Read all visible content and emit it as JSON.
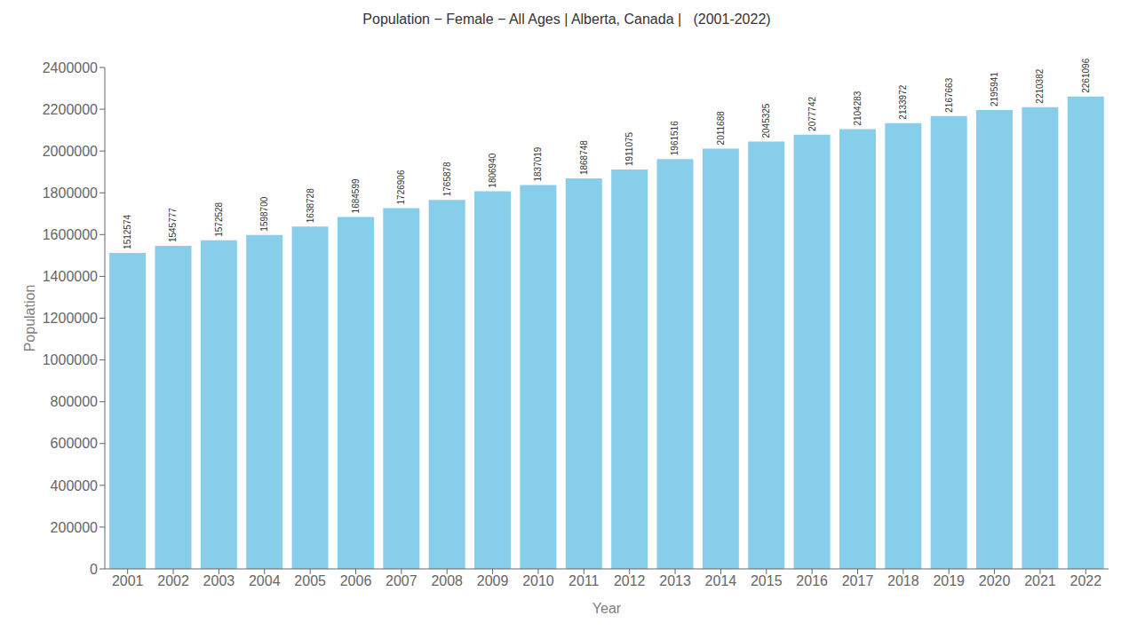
{
  "chart_data": {
    "type": "bar",
    "title": "Population − Female − All Ages | Alberta, Canada |   (2001-2022)",
    "xlabel": "Year",
    "ylabel": "Population",
    "categories": [
      "2001",
      "2002",
      "2003",
      "2004",
      "2005",
      "2006",
      "2007",
      "2008",
      "2009",
      "2010",
      "2011",
      "2012",
      "2013",
      "2014",
      "2015",
      "2016",
      "2017",
      "2018",
      "2019",
      "2020",
      "2021",
      "2022"
    ],
    "values": [
      1512574,
      1545777,
      1572528,
      1598700,
      1638728,
      1684599,
      1726906,
      1765878,
      1806940,
      1837019,
      1868748,
      1911075,
      1961516,
      2011688,
      2045325,
      2077742,
      2104283,
      2133972,
      2167663,
      2195941,
      2210382,
      2261096
    ],
    "color": "#87CEEB",
    "ylim": [
      0,
      2400000
    ],
    "yticks": [
      0,
      200000,
      400000,
      600000,
      800000,
      1000000,
      1200000,
      1400000,
      1600000,
      1800000,
      2000000,
      2200000,
      2400000
    ],
    "grid": false,
    "data_labels": true
  }
}
